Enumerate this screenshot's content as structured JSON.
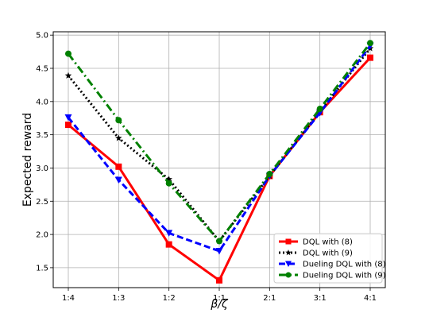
{
  "chart_data": {
    "type": "line",
    "categories": [
      "1:4",
      "1:3",
      "1:2",
      "1:1",
      "2:1",
      "3:1",
      "4:1"
    ],
    "xlabel": "β/ζ",
    "ylabel": "Expected reward",
    "ylim": [
      1.2,
      5.05
    ],
    "yticks": [
      1.5,
      2.0,
      2.5,
      3.0,
      3.5,
      4.0,
      4.5,
      5.0
    ],
    "ytick_labels": [
      "1.5",
      "2.0",
      "2.5",
      "3.0",
      "3.5",
      "4.0",
      "4.5",
      "5.0"
    ],
    "grid": true,
    "legend_position": "lower-right",
    "series": [
      {
        "name": "DQL with (8)",
        "values": [
          3.65,
          3.02,
          1.85,
          1.31,
          2.88,
          3.84,
          4.66
        ],
        "color": "#ff0000",
        "dash": "solid",
        "marker": "square"
      },
      {
        "name": "DQL with (9)",
        "values": [
          4.39,
          3.45,
          2.83,
          1.9,
          2.88,
          3.85,
          4.8
        ],
        "color": "#000000",
        "dash": "dotted",
        "marker": "star"
      },
      {
        "name": "Dueling DQL with (8)",
        "values": [
          3.76,
          2.82,
          2.02,
          1.75,
          2.88,
          3.83,
          4.84
        ],
        "color": "#0000ff",
        "dash": "dashed",
        "marker": "triangle-down"
      },
      {
        "name": "Dueling DQL with (9)",
        "values": [
          4.72,
          3.72,
          2.77,
          1.9,
          2.91,
          3.89,
          4.88
        ],
        "color": "#008000",
        "dash": "dashdot",
        "marker": "circle"
      }
    ]
  }
}
